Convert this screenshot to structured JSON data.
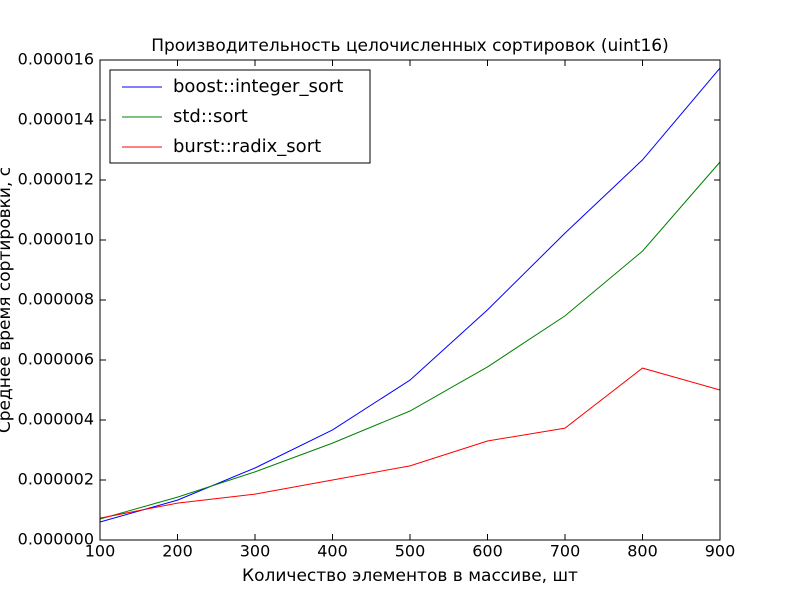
{
  "chart_data": {
    "type": "line",
    "title": "Производительность целочисленных сортировок (uint16)",
    "x_label": "Количество элементов в массиве, шт",
    "y_label": "Среднее время сортировки, с",
    "x": [
      100,
      200,
      300,
      400,
      500,
      600,
      700,
      800,
      900
    ],
    "series": [
      {
        "name": "boost::integer_sort",
        "color": "#0000ff",
        "values": [
          6e-07,
          1.33e-06,
          2.4e-06,
          3.67e-06,
          5.33e-06,
          7.67e-06,
          1.023e-05,
          1.267e-05,
          1.573e-05
        ]
      },
      {
        "name": "std::sort",
        "color": "#008000",
        "values": [
          7e-07,
          1.43e-06,
          2.27e-06,
          3.23e-06,
          4.3e-06,
          5.77e-06,
          7.47e-06,
          9.63e-06,
          1.26e-05
        ]
      },
      {
        "name": "burst::radix_sort",
        "color": "#ff0000",
        "values": [
          7.3e-07,
          1.23e-06,
          1.53e-06,
          2e-06,
          2.47e-06,
          3.3e-06,
          3.73e-06,
          5.73e-06,
          5e-06
        ]
      }
    ],
    "xlim": [
      100,
      900
    ],
    "xticks": [
      100,
      200,
      300,
      400,
      500,
      600,
      700,
      800,
      900
    ],
    "ylim": [
      0,
      1.6e-05
    ],
    "yticks": [
      {
        "value": 0,
        "label": "0.000000"
      },
      {
        "value": 2e-06,
        "label": "0.000002"
      },
      {
        "value": 4e-06,
        "label": "0.000004"
      },
      {
        "value": 6e-06,
        "label": "0.000006"
      },
      {
        "value": 8e-06,
        "label": "0.000008"
      },
      {
        "value": 1e-05,
        "label": "0.000010"
      },
      {
        "value": 1.2e-05,
        "label": "0.000012"
      },
      {
        "value": 1.4e-05,
        "label": "0.000014"
      },
      {
        "value": 1.6e-05,
        "label": "0.000016"
      }
    ],
    "legend": "upper left",
    "grid": false
  }
}
